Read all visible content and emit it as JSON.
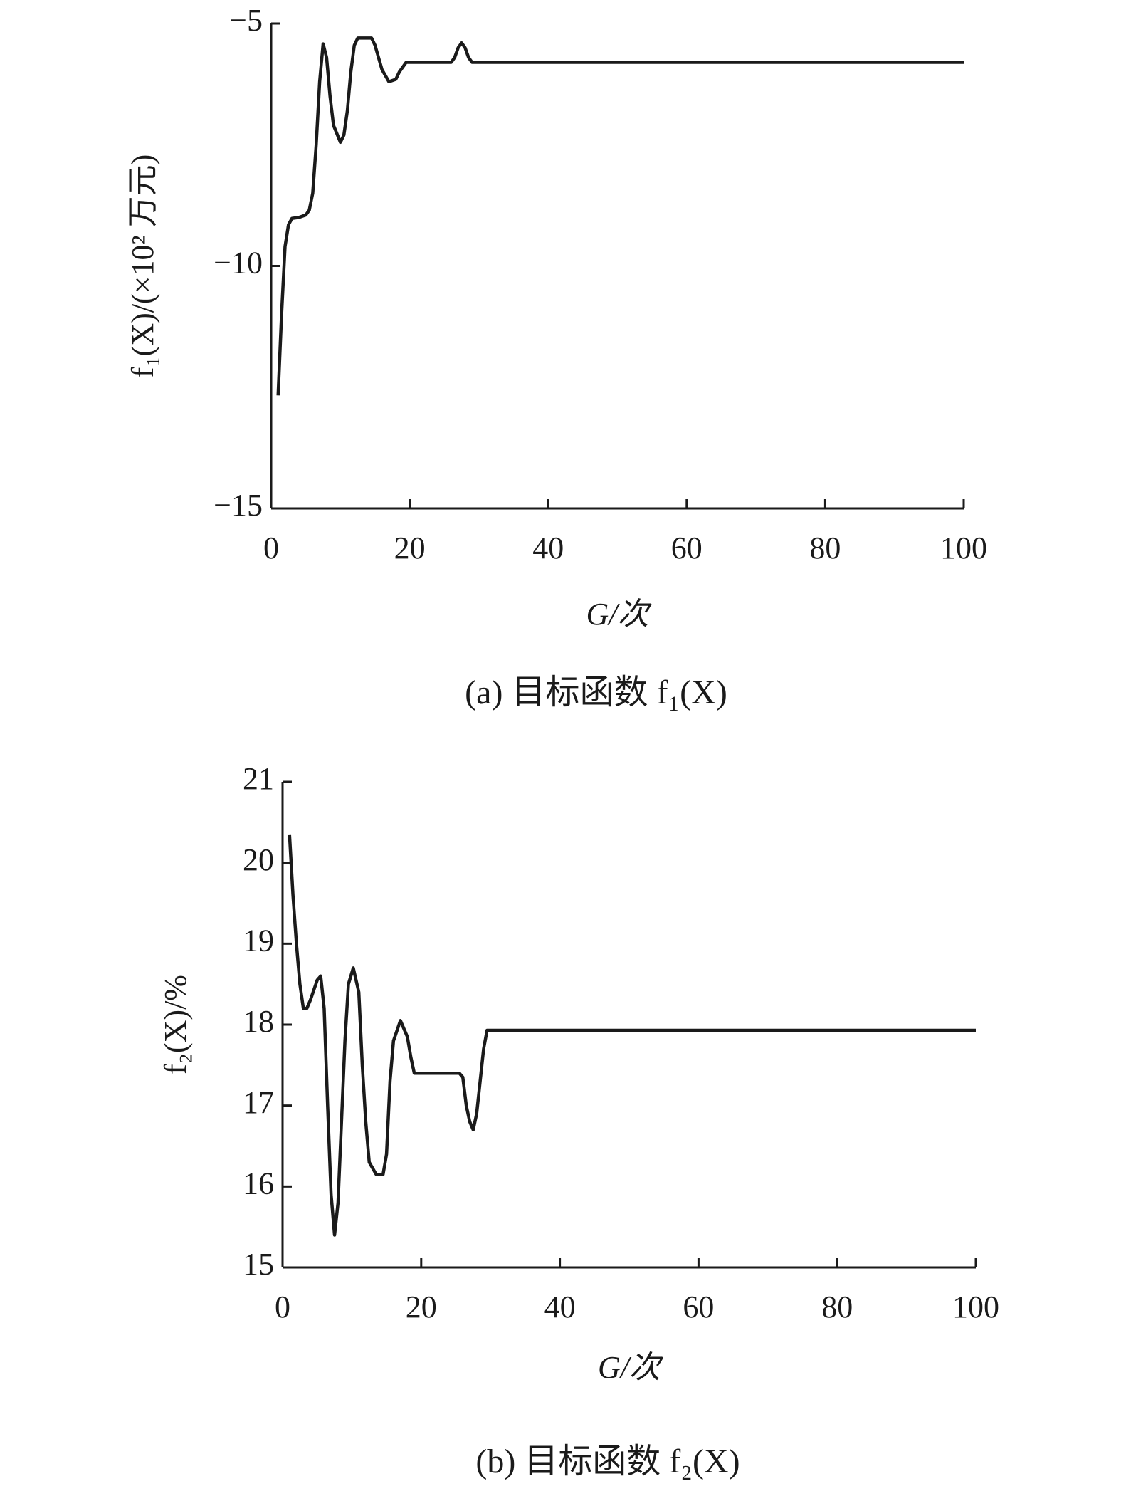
{
  "chart_data": [
    {
      "type": "line",
      "title": "(a) 目标函数 f₁(X)",
      "x_label": "G/次",
      "y_label": "f₁(X)/(×10² 万元)",
      "x": [
        1,
        1.5,
        2,
        2.5,
        3,
        4,
        5,
        5.5,
        6,
        6.5,
        7,
        7.5,
        8,
        8.5,
        9,
        10,
        10.5,
        11,
        11.5,
        12,
        12.5,
        14.5,
        15,
        16,
        17,
        18,
        18.5,
        19.5,
        26,
        26.5,
        27,
        27.5,
        28,
        28.5,
        29,
        100
      ],
      "values": [
        -12.67,
        -11.0,
        -9.6,
        -9.15,
        -9.02,
        -9.0,
        -8.95,
        -8.85,
        -8.5,
        -7.5,
        -6.2,
        -5.42,
        -5.7,
        -6.5,
        -7.1,
        -7.45,
        -7.3,
        -6.8,
        -6.0,
        -5.45,
        -5.3,
        -5.3,
        -5.45,
        -5.95,
        -6.2,
        -6.15,
        -6.0,
        -5.8,
        -5.8,
        -5.7,
        -5.5,
        -5.4,
        -5.5,
        -5.7,
        -5.8,
        -5.8
      ],
      "color": "#1a1a1a",
      "xlim": [
        0,
        100
      ],
      "ylim": [
        -15,
        -5
      ],
      "xticks": [
        0,
        20,
        40,
        60,
        80,
        100
      ],
      "yticks": [
        {
          "value": -5,
          "label": "−5"
        },
        {
          "value": -10,
          "label": "−10"
        },
        {
          "value": -15,
          "label": "−15"
        }
      ]
    },
    {
      "type": "line",
      "title": "(b) 目标函数 f₂(X)",
      "x_label": "G/次",
      "y_label": "f₂(X)/%",
      "x": [
        1,
        1.5,
        2,
        2.5,
        3,
        3.5,
        4,
        5,
        5.5,
        6,
        6.5,
        7,
        7.5,
        8,
        8.5,
        9,
        9.5,
        10.2,
        11,
        11.5,
        12,
        12.5,
        13.5,
        14.5,
        15,
        15.5,
        16,
        17,
        18,
        18.5,
        19,
        25.5,
        26,
        26.5,
        27,
        27.5,
        28,
        28.5,
        29,
        29.5,
        100
      ],
      "values": [
        20.35,
        19.6,
        19.0,
        18.5,
        18.2,
        18.2,
        18.3,
        18.55,
        18.6,
        18.2,
        17.0,
        15.9,
        15.4,
        15.8,
        16.8,
        17.8,
        18.5,
        18.7,
        18.4,
        17.5,
        16.8,
        16.3,
        16.15,
        16.15,
        16.4,
        17.3,
        17.8,
        18.05,
        17.85,
        17.6,
        17.4,
        17.4,
        17.35,
        17.0,
        16.8,
        16.7,
        16.9,
        17.3,
        17.7,
        17.93,
        17.93
      ],
      "color": "#1a1a1a",
      "xlim": [
        0,
        100
      ],
      "ylim": [
        15,
        21
      ],
      "xticks": [
        0,
        20,
        40,
        60,
        80,
        100
      ],
      "yticks": [
        15,
        16,
        17,
        18,
        19,
        20,
        21
      ]
    }
  ]
}
